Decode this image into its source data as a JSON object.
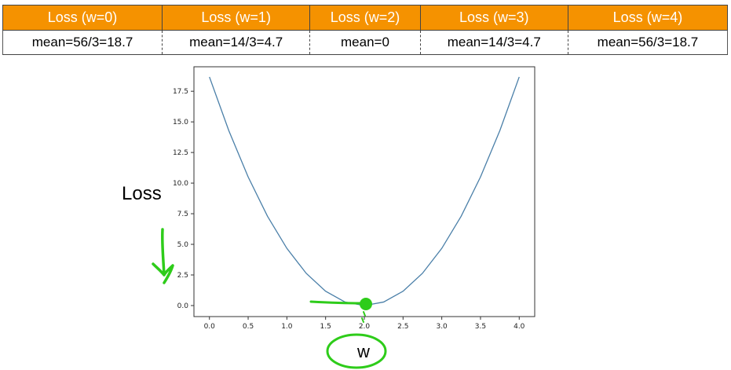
{
  "table": {
    "headers": [
      "Loss (w=0)",
      "Loss (w=1)",
      "Loss (w=2)",
      "Loss (w=3)",
      "Loss (w=4)"
    ],
    "values": [
      "mean=56/3=18.7",
      "mean=14/3=4.7",
      "mean=0",
      "mean=14/3=4.7",
      "mean=56/3=18.7"
    ]
  },
  "chart_data": {
    "type": "line",
    "x": [
      0.0,
      0.25,
      0.5,
      0.75,
      1.0,
      1.25,
      1.5,
      1.75,
      2.0,
      2.25,
      2.5,
      2.75,
      3.0,
      3.25,
      3.5,
      3.75,
      4.0
    ],
    "series": [
      {
        "values": [
          18.67,
          14.29,
          10.5,
          7.29,
          4.67,
          2.63,
          1.17,
          0.29,
          0.0,
          0.29,
          1.17,
          2.63,
          4.67,
          7.29,
          10.5,
          14.29,
          18.67
        ]
      }
    ],
    "xlim": [
      -0.2,
      4.2
    ],
    "ylim": [
      -0.9,
      19.5
    ],
    "xticks": [
      "0.0",
      "0.5",
      "1.0",
      "1.5",
      "2.0",
      "2.5",
      "3.0",
      "3.5",
      "4.0"
    ],
    "yticks": [
      "0.0",
      "2.5",
      "5.0",
      "7.5",
      "10.0",
      "12.5",
      "15.0",
      "17.5"
    ],
    "xlabel": "w",
    "ylabel": "Loss",
    "grid": false,
    "line_color": "#4a7fa8",
    "annotation_color": "#2ecc1a"
  }
}
